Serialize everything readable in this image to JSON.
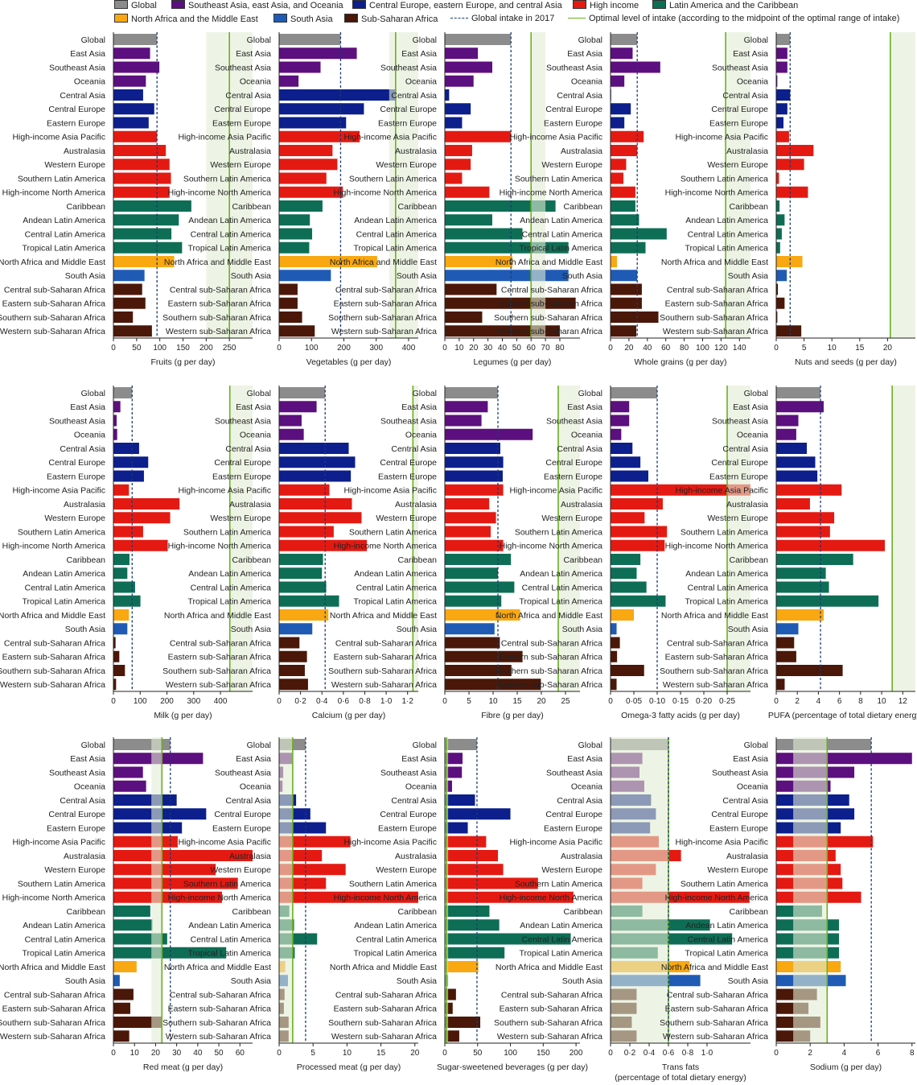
{
  "legend": {
    "global": "Global",
    "seea": "Southeast Asia, east Asia, and Oceania",
    "ceeca": "Central Europe, eastern Europe, and central Asia",
    "hi": "High income",
    "lac": "Latin America and the Caribbean",
    "nam": "North Africa and the Middle East",
    "sa": "South Asia",
    "ssa": "Sub-Saharan Africa",
    "global_intake": "Global intake in 2017",
    "optimal": "Optimal level of intake (according to the midpoint of the optimal range of intake)"
  },
  "colors": {
    "global": "#8c8c8c",
    "seea": "#5c0f7e",
    "ceeca": "#0c1f8c",
    "hi": "#e41a12",
    "lac": "#0e6e55",
    "nam": "#f9a811",
    "sa": "#1f5bb5",
    "ssa": "#4a1708",
    "global_line": "#1a3a73",
    "optimal_line": "#6ab023",
    "optimal_fill": "#e3ecd3"
  },
  "regions": [
    "Global",
    "East Asia",
    "Southeast Asia",
    "Oceania",
    "Central Asia",
    "Central Europe",
    "Eastern Europe",
    "High-income Asia Pacific",
    "Australasia",
    "Western Europe",
    "Southern Latin America",
    "High-income North America",
    "Caribbean",
    "Andean Latin America",
    "Central Latin America",
    "Tropical Latin America",
    "North Africa and Middle East",
    "South Asia",
    "Central sub-Saharan Africa",
    "Eastern sub-Saharan Africa",
    "Southern sub-Saharan Africa",
    "Western sub-Saharan Africa"
  ],
  "region_groups": [
    "global",
    "seea",
    "seea",
    "seea",
    "ceeca",
    "ceeca",
    "ceeca",
    "hi",
    "hi",
    "hi",
    "hi",
    "hi",
    "lac",
    "lac",
    "lac",
    "lac",
    "nam",
    "sa",
    "ssa",
    "ssa",
    "ssa",
    "ssa"
  ],
  "chart_data": [
    {
      "type": "bar",
      "orientation": "horizontal",
      "xlabel": "Fruits (g per day)",
      "xlim": [
        0,
        300
      ],
      "ticks": [
        0,
        50,
        100,
        150,
        200,
        250
      ],
      "tick_labels": [
        "0",
        "50",
        "100",
        "150",
        "200",
        "250"
      ],
      "global_intake": 94,
      "optimal": 250,
      "optimal_range": [
        200,
        300
      ],
      "values": [
        94,
        79,
        99,
        70,
        64,
        88,
        76,
        94,
        113,
        121,
        124,
        121,
        168,
        141,
        125,
        148,
        131,
        67,
        62,
        69,
        42,
        83
      ]
    },
    {
      "type": "bar",
      "orientation": "horizontal",
      "xlabel": "Vegetables (g per day)",
      "xlim": [
        0,
        430
      ],
      "ticks": [
        0,
        100,
        200,
        300,
        400
      ],
      "tick_labels": [
        "0",
        "100",
        "200",
        "300",
        "400"
      ],
      "global_intake": 190,
      "optimal": 360,
      "optimal_range": [
        340,
        430
      ],
      "values": [
        190,
        240,
        128,
        60,
        362,
        262,
        207,
        249,
        165,
        180,
        146,
        197,
        134,
        95,
        102,
        93,
        303,
        160,
        57,
        57,
        71,
        110
      ]
    },
    {
      "type": "bar",
      "orientation": "horizontal",
      "xlabel": "Legumes (g per day)",
      "xlim": [
        0,
        94
      ],
      "ticks": [
        0,
        10,
        20,
        30,
        40,
        50,
        60,
        70,
        80
      ],
      "tick_labels": [
        "0",
        "10",
        "20",
        "30",
        "40",
        "50",
        "60",
        "70",
        "80"
      ],
      "global_intake": 46,
      "optimal": 60,
      "optimal_range": [
        60,
        70
      ],
      "values": [
        46,
        23,
        33,
        20,
        3,
        18,
        12,
        46,
        19,
        18,
        12,
        31,
        77,
        33,
        54,
        86,
        47,
        86,
        36,
        91,
        26,
        80
      ]
    },
    {
      "type": "bar",
      "orientation": "horizontal",
      "xlabel": "Whole grains (g per day)",
      "xlim": [
        0,
        152
      ],
      "ticks": [
        0,
        20,
        40,
        60,
        80,
        100,
        120,
        140
      ],
      "tick_labels": [
        "0",
        "20",
        "40",
        "60",
        "80",
        "100",
        "120",
        "140"
      ],
      "global_intake": 29,
      "optimal": 125,
      "optimal_range": [
        125,
        152
      ],
      "values": [
        29,
        24,
        54,
        15,
        0,
        22,
        15,
        36,
        29,
        17,
        14,
        27,
        27,
        31,
        61,
        38,
        7,
        29,
        34,
        34,
        52,
        28
      ]
    },
    {
      "type": "bar",
      "orientation": "horizontal",
      "xlabel": "Nuts and seeds (g per day)",
      "xlim": [
        0,
        25
      ],
      "ticks": [
        0,
        5,
        10,
        15,
        20
      ],
      "tick_labels": [
        "0",
        "5",
        "10",
        "15",
        "20"
      ],
      "global_intake": 2.5,
      "optimal": 20.5,
      "optimal_range": [
        20.5,
        25
      ],
      "values": [
        2.5,
        2.0,
        2.0,
        0.2,
        2.5,
        2.0,
        1.3,
        2.3,
        6.7,
        5.0,
        0.5,
        5.7,
        0.6,
        1.5,
        1.0,
        0.7,
        4.7,
        1.9,
        0.3,
        1.5,
        0.2,
        4.5
      ]
    },
    {
      "type": "bar",
      "orientation": "horizontal",
      "xlabel": "Milk (g per day)",
      "xlim": [
        0,
        520
      ],
      "ticks": [
        0,
        100,
        200,
        300,
        400
      ],
      "tick_labels": [
        "0",
        "100",
        "200",
        "300",
        "400"
      ],
      "global_intake": 70,
      "optimal": 435,
      "optimal_range": [
        435,
        520
      ],
      "values": [
        70,
        26,
        12,
        14,
        96,
        130,
        114,
        58,
        247,
        212,
        111,
        203,
        60,
        52,
        81,
        101,
        58,
        52,
        8,
        22,
        43,
        10
      ]
    },
    {
      "type": "bar",
      "orientation": "horizontal",
      "xlabel": "Calcium (g per day)",
      "xlim": [
        0,
        1.3
      ],
      "ticks": [
        0,
        0.2,
        0.4,
        0.6,
        0.8,
        1.0,
        1.2
      ],
      "tick_labels": [
        "0",
        "0·2",
        "0·4",
        "0·6",
        "0·8",
        "1·0",
        "1·2"
      ],
      "global_intake": 0.43,
      "optimal": 1.25,
      "optimal_range": [
        1.25,
        1.3
      ],
      "values": [
        0.43,
        0.35,
        0.21,
        0.23,
        0.65,
        0.71,
        0.67,
        0.47,
        0.68,
        0.77,
        0.51,
        0.82,
        0.41,
        0.4,
        0.44,
        0.56,
        0.46,
        0.31,
        0.19,
        0.26,
        0.24,
        0.27
      ]
    },
    {
      "type": "bar",
      "orientation": "horizontal",
      "xlabel": "Fibre (g per day)",
      "xlim": [
        0,
        28
      ],
      "ticks": [
        0,
        5,
        10,
        15,
        20,
        25
      ],
      "tick_labels": [
        "0",
        "5",
        "10",
        "15",
        "20",
        "25"
      ],
      "global_intake": 11,
      "optimal": 23.5,
      "optimal_range": [
        23.5,
        28
      ],
      "values": [
        11,
        8.9,
        7.6,
        18.2,
        11.5,
        12.1,
        12.0,
        12.1,
        9.2,
        10.6,
        9.5,
        12.1,
        13.7,
        11.0,
        14.4,
        11.7,
        15.6,
        10.3,
        11.4,
        16.1,
        13.8,
        19.9
      ]
    },
    {
      "type": "bar",
      "orientation": "horizontal",
      "xlabel": "Omega-3 fatty acids (g per day)",
      "xlim": [
        0,
        0.3
      ],
      "ticks": [
        0,
        0.05,
        0.1,
        0.15,
        0.2,
        0.25
      ],
      "tick_labels": [
        "0",
        "0·05",
        "0·10",
        "0·15",
        "0·20",
        "0·25"
      ],
      "global_intake": 0.1,
      "optimal": 0.25,
      "optimal_range": [
        0.25,
        0.3
      ],
      "values": [
        0.1,
        0.04,
        0.04,
        0.023,
        0.047,
        0.064,
        0.081,
        0.3,
        0.112,
        0.073,
        0.121,
        0.116,
        0.064,
        0.056,
        0.077,
        0.118,
        0.05,
        0.013,
        0.02,
        0.014,
        0.072,
        0.013
      ]
    },
    {
      "type": "bar",
      "orientation": "horizontal",
      "xlabel": "PUFA (percentage of total dietary energy)",
      "xlim": [
        0,
        13.2
      ],
      "ticks": [
        0,
        2,
        4,
        6,
        8,
        10,
        12
      ],
      "tick_labels": [
        "0",
        "2",
        "4",
        "6",
        "8",
        "10",
        "12"
      ],
      "global_intake": 4.2,
      "optimal": 11,
      "optimal_range": [
        11,
        13.2
      ],
      "values": [
        4.2,
        4.5,
        2.1,
        1.9,
        2.9,
        3.7,
        3.9,
        6.2,
        3.2,
        5.5,
        5.1,
        10.3,
        7.3,
        4.7,
        5.0,
        9.7,
        4.5,
        2.1,
        1.7,
        1.9,
        6.3,
        0.8
      ]
    },
    {
      "type": "bar",
      "orientation": "horizontal",
      "xlabel": "Red meat (g per day)",
      "xlim": [
        0,
        66
      ],
      "ticks": [
        0,
        10,
        20,
        30,
        40,
        50,
        60
      ],
      "tick_labels": [
        "0",
        "10",
        "20",
        "30",
        "40",
        "50",
        "60"
      ],
      "global_intake": 27,
      "optimal": 23,
      "optimal_range": [
        18,
        23
      ],
      "values": [
        27,
        42.5,
        14,
        15.5,
        30,
        44,
        32.5,
        30.5,
        66,
        48.5,
        59,
        51.5,
        17.5,
        18.5,
        25.5,
        53.5,
        11,
        3,
        9.5,
        8,
        23,
        7.5
      ]
    },
    {
      "type": "bar",
      "orientation": "horizontal",
      "xlabel": "Processed meat (g per day)",
      "xlim": [
        0,
        20.5
      ],
      "ticks": [
        0,
        5,
        10,
        15,
        20
      ],
      "tick_labels": [
        "0",
        "5",
        "10",
        "15",
        "20"
      ],
      "global_intake": 3.9,
      "optimal": 2,
      "optimal_range": [
        0,
        2
      ],
      "values": [
        3.9,
        1.9,
        0.6,
        0.5,
        2.5,
        4.6,
        6.9,
        10.5,
        6.3,
        9.8,
        6.9,
        20.5,
        1.5,
        2.2,
        5.6,
        2.3,
        0.9,
        1.3,
        0.8,
        0.7,
        1.4,
        1.4
      ]
    },
    {
      "type": "bar",
      "orientation": "horizontal",
      "xlabel": "Sugar-sweetened beverages (g per day)",
      "xlim": [
        0,
        206
      ],
      "ticks": [
        0,
        50,
        100,
        150,
        200
      ],
      "tick_labels": [
        "0",
        "50",
        "100",
        "150",
        "200"
      ],
      "global_intake": 49,
      "optimal": 2.5,
      "optimal_range": [
        0,
        5
      ],
      "values": [
        49,
        27,
        26,
        11,
        46,
        100,
        35,
        63,
        81,
        89,
        142,
        196,
        68,
        83,
        192,
        91,
        51,
        5,
        17,
        12,
        54,
        22
      ]
    },
    {
      "type": "bar",
      "orientation": "horizontal",
      "xlabel": "Trans fats",
      "xlabel2": "(percentage of total dietary energy)",
      "xlim": [
        0,
        1.45
      ],
      "ticks": [
        0,
        0.2,
        0.4,
        0.6,
        0.8,
        1.0
      ],
      "tick_labels": [
        "0",
        "0·2",
        "0·4",
        "0·6",
        "0·8",
        "1·0"
      ],
      "global_intake": 0.6,
      "optimal": 0.6,
      "optimal_range": [
        0,
        0.6
      ],
      "values": [
        0.6,
        0.33,
        0.3,
        0.35,
        0.42,
        0.47,
        0.41,
        0.5,
        0.73,
        0.47,
        0.33,
        1.44,
        0.33,
        1.03,
        1.26,
        0.49,
        0.82,
        0.93,
        0.27,
        0.27,
        0.22,
        0.27
      ]
    },
    {
      "type": "bar",
      "orientation": "horizontal",
      "xlabel": "Sodium (g per day)",
      "xlim": [
        0,
        8.2
      ],
      "ticks": [
        0,
        2,
        4,
        6,
        8
      ],
      "tick_labels": [
        "0",
        "2",
        "4",
        "6",
        "8"
      ],
      "global_intake": 5.6,
      "optimal": 3,
      "optimal_range": [
        1,
        3
      ],
      "values": [
        5.6,
        8.0,
        4.6,
        3.2,
        4.3,
        4.6,
        3.8,
        5.7,
        3.5,
        3.8,
        3.9,
        5.0,
        2.7,
        3.7,
        3.7,
        3.7,
        3.8,
        4.1,
        2.4,
        1.9,
        2.6,
        2.0
      ]
    }
  ]
}
